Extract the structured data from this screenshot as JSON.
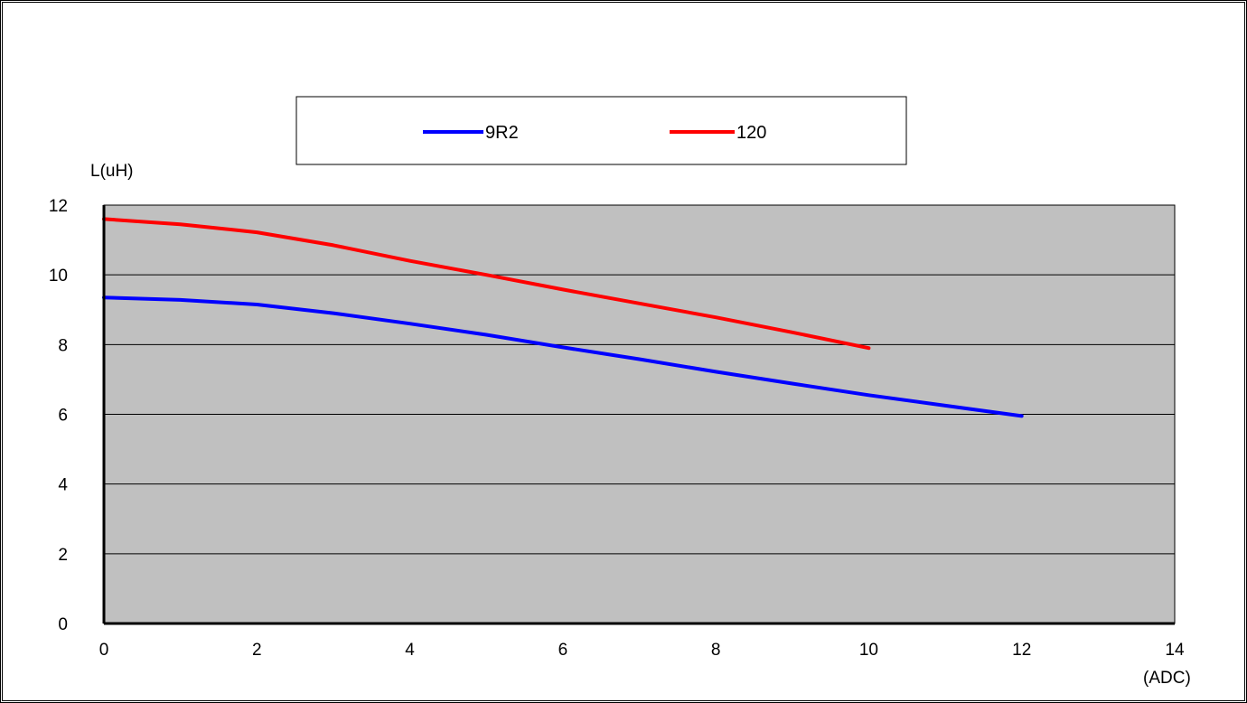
{
  "chart_data": {
    "type": "line",
    "ylabel": "L(uH)",
    "xlabel": "(ADC)",
    "xlim": [
      0,
      14
    ],
    "ylim": [
      0,
      12
    ],
    "x_ticks": [
      "0",
      "2",
      "4",
      "6",
      "8",
      "10",
      "12",
      "14"
    ],
    "y_ticks": [
      "0",
      "2",
      "4",
      "6",
      "8",
      "10",
      "12"
    ],
    "grid": "horizontal",
    "plot_background": "#c0c0c0",
    "legend_position": "top-center",
    "series": [
      {
        "name": "9R2",
        "color": "#0000ff",
        "x": [
          0,
          1,
          2,
          3,
          4,
          5,
          6,
          7,
          8,
          9,
          10,
          11,
          12
        ],
        "y": [
          9.35,
          9.28,
          9.15,
          8.9,
          8.6,
          8.28,
          7.92,
          7.58,
          7.22,
          6.88,
          6.55,
          6.25,
          5.95
        ]
      },
      {
        "name": "120",
        "color": "#ff0000",
        "x": [
          0,
          1,
          2,
          3,
          4,
          5,
          6,
          7,
          8,
          9,
          10
        ],
        "y": [
          11.6,
          11.45,
          11.22,
          10.85,
          10.4,
          10.0,
          9.58,
          9.18,
          8.78,
          8.35,
          7.9
        ]
      }
    ]
  }
}
